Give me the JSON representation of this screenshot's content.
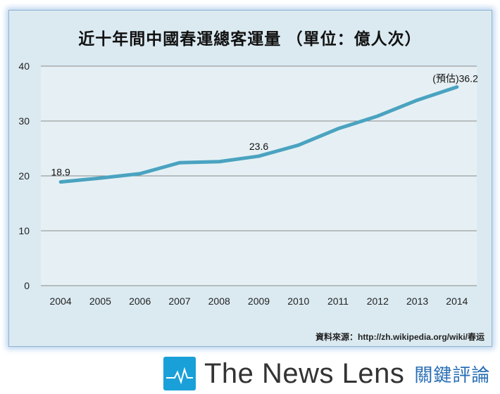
{
  "chart_data": {
    "type": "line",
    "title": "近十年間中國春運總客運量 （單位：億人次）",
    "xlabel": "",
    "ylabel": "",
    "categories": [
      "2004",
      "2005",
      "2006",
      "2007",
      "2008",
      "2009",
      "2010",
      "2011",
      "2012",
      "2013",
      "2014"
    ],
    "series": [
      {
        "name": "春運總客運量",
        "values": [
          18.9,
          19.6,
          20.4,
          22.4,
          22.6,
          23.6,
          25.6,
          28.6,
          30.9,
          33.8,
          36.2
        ]
      }
    ],
    "ylim": [
      0,
      40
    ],
    "yticks": [
      "0",
      "10",
      "20",
      "30",
      "40"
    ],
    "grid": true,
    "annotations": [
      "18.9",
      "23.6",
      "(預估)36.2"
    ],
    "source": "資料來源：http://zh.wikipedia.org/wiki/春运",
    "line_color": "#4aa3c0"
  },
  "logo": {
    "name": "The News Lens",
    "name_zh": "關鍵評論"
  }
}
